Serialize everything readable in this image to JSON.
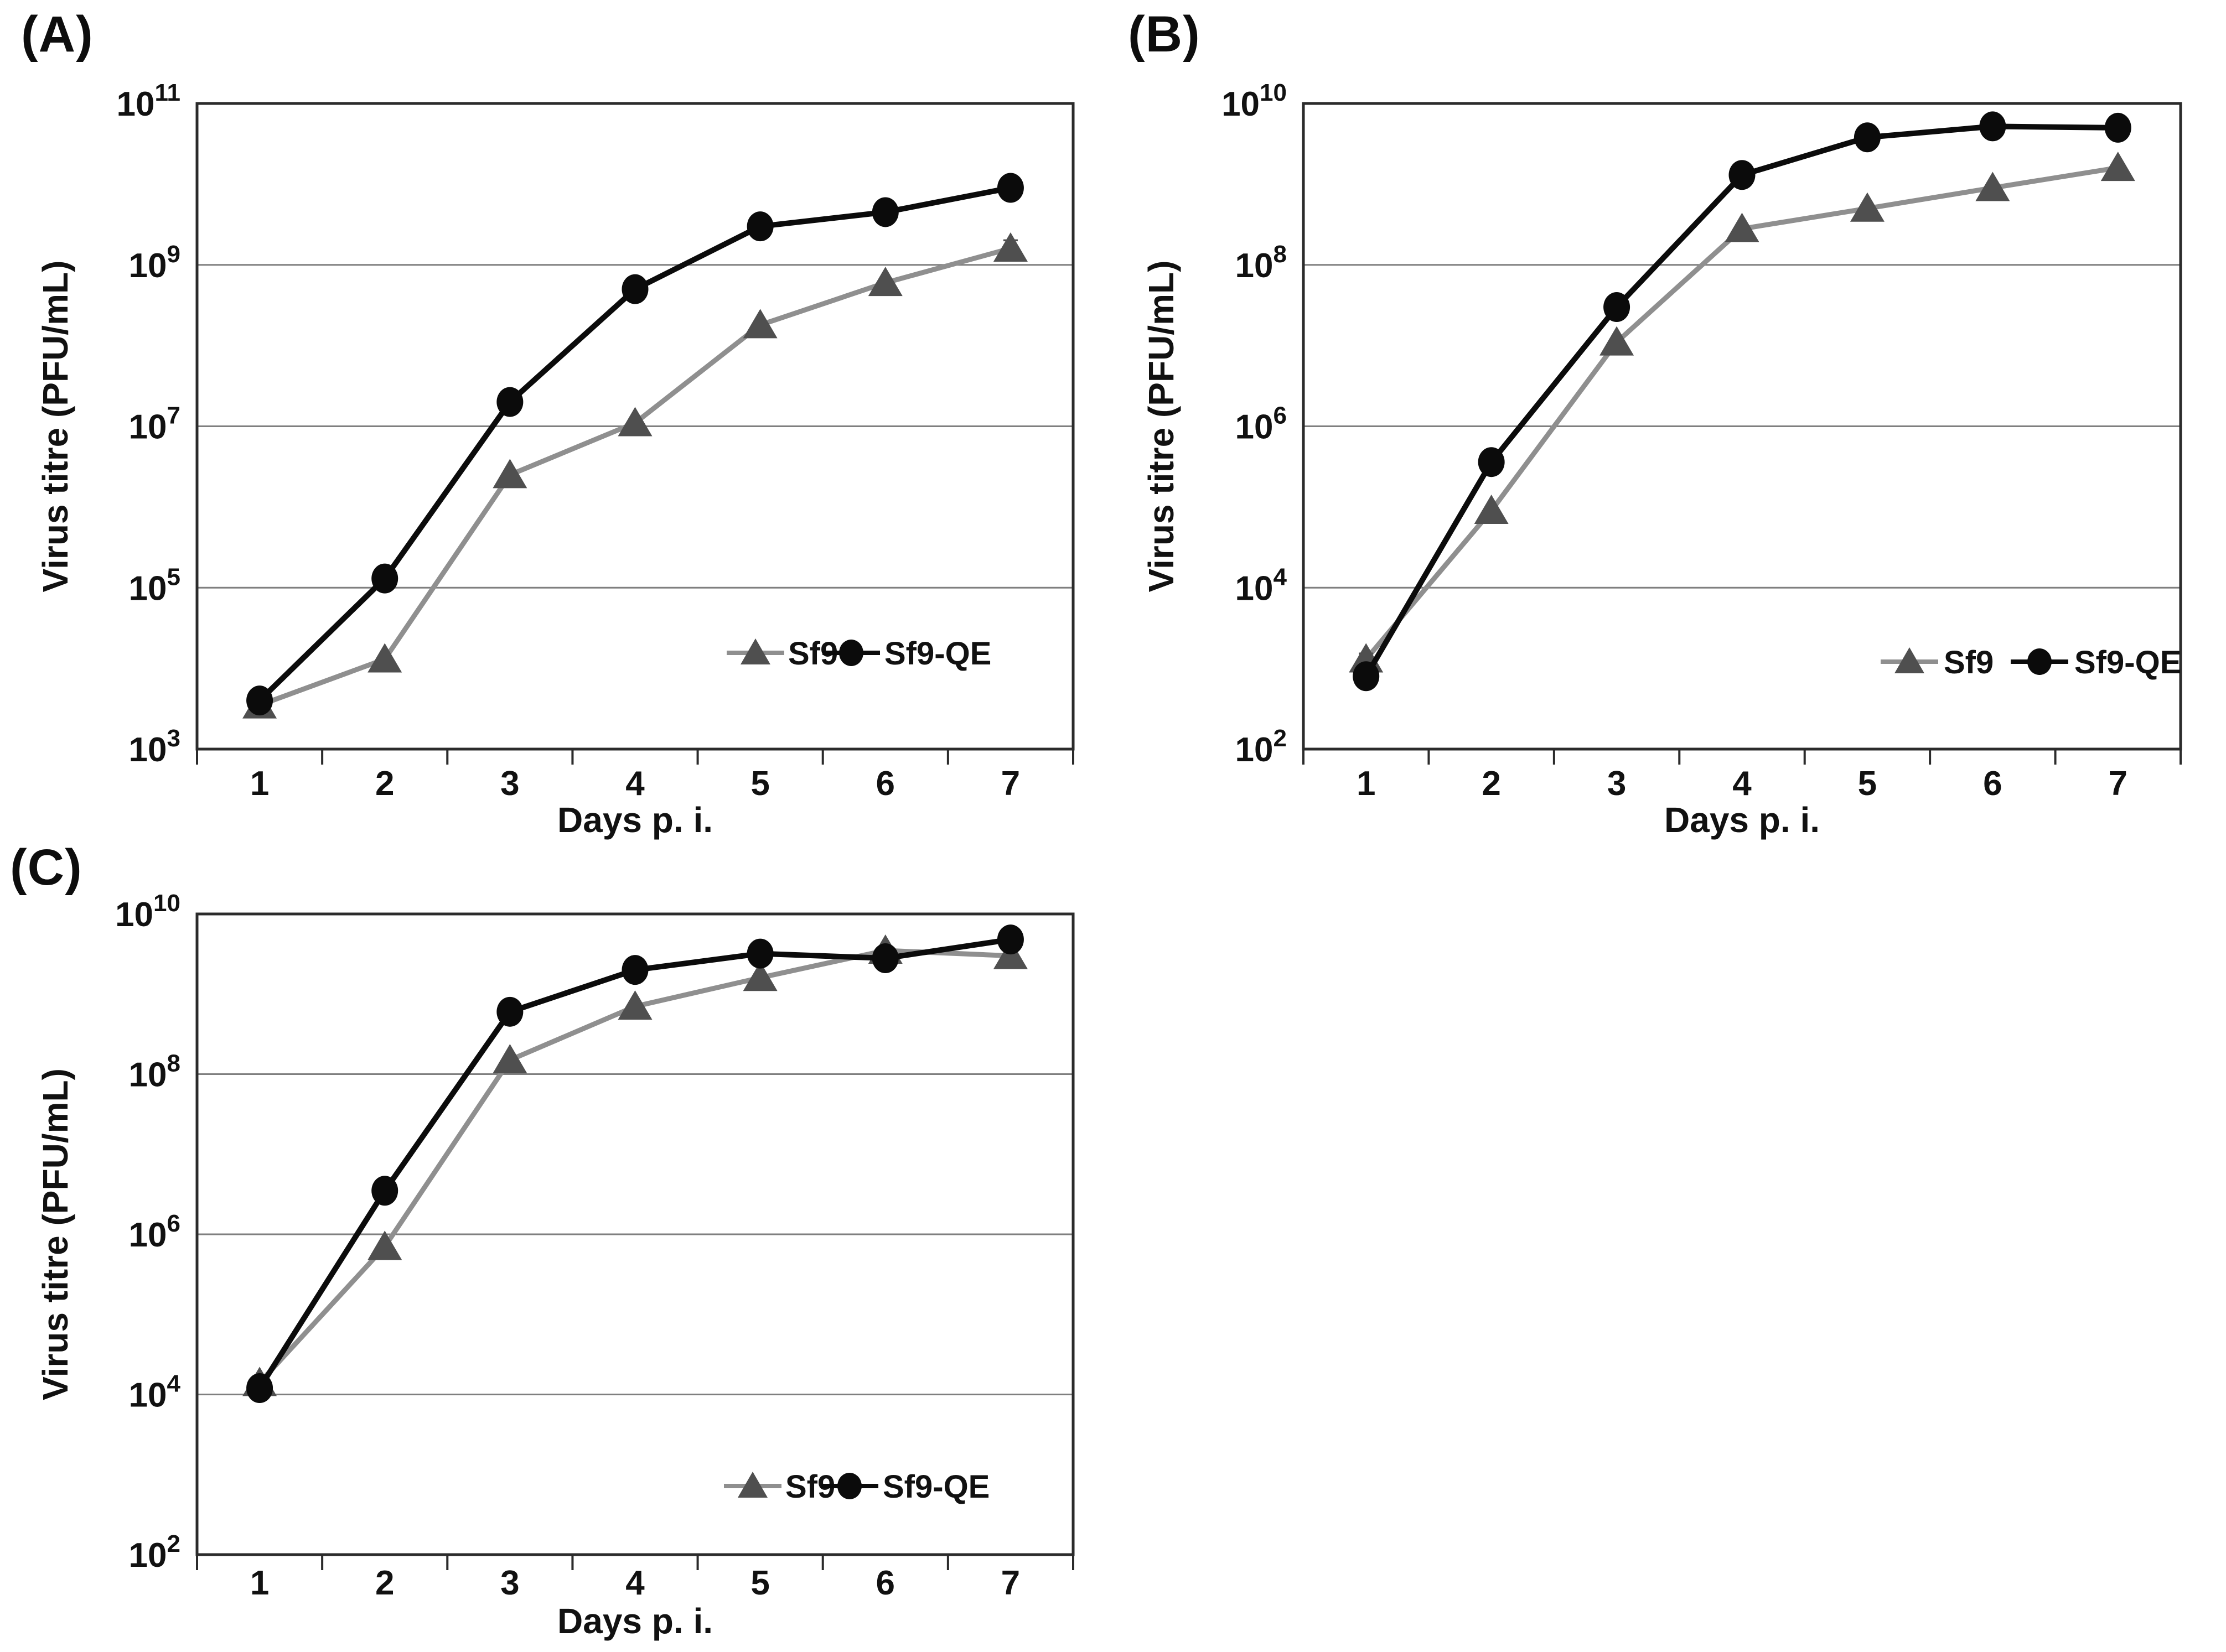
{
  "figure_background": "#ffffff",
  "text_color": "#111111",
  "frame_color": "#2b2b2b",
  "gridline_color": "#7f7f7f",
  "chart_data": [
    {
      "type": "line",
      "panel_id": "a",
      "panel_label": "(A)",
      "xlabel": "Days p. i.",
      "ylabel": "Virus titre (PFU/mL)",
      "x": [
        1,
        2,
        3,
        4,
        5,
        6,
        7
      ],
      "x_tick_labels": [
        "1",
        "2",
        "3",
        "4",
        "5",
        "6",
        "7"
      ],
      "y_scale": "log10",
      "ylim_exponents": [
        3,
        11
      ],
      "ytick_exponents": [
        3,
        5,
        7,
        9,
        11
      ],
      "ytick_labels": [
        "10^3",
        "10^5",
        "10^7",
        "10^9",
        "10^11"
      ],
      "grid": true,
      "legend_position": "inside-bottom-right",
      "series": [
        {
          "name": "Sf9",
          "marker": "triangle",
          "line_color": "#8f8f8f",
          "marker_color": "#4f4f4f",
          "values": [
            3500.0,
            13000.0,
            2500000.0,
            11000000.0,
            180000000.0,
            600000000.0,
            1600000000.0
          ],
          "err_decades": [
            0.06,
            0,
            0,
            0,
            0,
            0,
            0.1
          ]
        },
        {
          "name": "Sf9-QE",
          "marker": "circle",
          "line_color": "#0b0b0b",
          "marker_color": "#0b0b0b",
          "values": [
            4000.0,
            130000.0,
            20000000.0,
            500000000.0,
            3000000000.0,
            4500000000.0,
            9000000000.0
          ],
          "err_decades": [
            0,
            0,
            0.1,
            0.08,
            0.05,
            0,
            0.04
          ]
        }
      ]
    },
    {
      "type": "line",
      "panel_id": "b",
      "panel_label": "(B)",
      "xlabel": "Days p. i.",
      "ylabel": "Virus titre (PFU/mL)",
      "x": [
        1,
        2,
        3,
        4,
        5,
        6,
        7
      ],
      "x_tick_labels": [
        "1",
        "2",
        "3",
        "4",
        "5",
        "6",
        "7"
      ],
      "y_scale": "log10",
      "ylim_exponents": [
        2,
        10
      ],
      "ytick_exponents": [
        2,
        4,
        6,
        8,
        10
      ],
      "ytick_labels": [
        "10^2",
        "10^4",
        "10^6",
        "10^8",
        "10^10"
      ],
      "grid": true,
      "legend_position": "inside-bottom-right",
      "series": [
        {
          "name": "Sf9",
          "marker": "triangle",
          "line_color": "#8f8f8f",
          "marker_color": "#4f4f4f",
          "values": [
            1300.0,
            90000.0,
            11000000.0,
            280000000.0,
            500000000.0,
            900000000.0,
            1600000000.0
          ],
          "err_decades": [
            0.07,
            0,
            0,
            0,
            0,
            0,
            0
          ]
        },
        {
          "name": "Sf9-QE",
          "marker": "circle",
          "line_color": "#0b0b0b",
          "marker_color": "#0b0b0b",
          "values": [
            800.0,
            360000.0,
            30000000.0,
            1300000000.0,
            3800000000.0,
            5200000000.0,
            5000000000.0
          ],
          "err_decades": [
            0.05,
            0.12,
            0,
            0.05,
            0.05,
            0,
            0
          ]
        }
      ]
    },
    {
      "type": "line",
      "panel_id": "c",
      "panel_label": "(C)",
      "xlabel": "Days p. i.",
      "ylabel": "Virus titre (PFU/mL)",
      "x": [
        1,
        2,
        3,
        4,
        5,
        6,
        7
      ],
      "x_tick_labels": [
        "1",
        "2",
        "3",
        "4",
        "5",
        "6",
        "7"
      ],
      "y_scale": "log10",
      "ylim_exponents": [
        2,
        10
      ],
      "ytick_exponents": [
        2,
        4,
        6,
        8,
        10
      ],
      "ytick_labels": [
        "10^2",
        "10^4",
        "10^6",
        "10^8",
        "10^10"
      ],
      "grid": true,
      "legend_position": "inside-bottom-right",
      "series": [
        {
          "name": "Sf9",
          "marker": "triangle",
          "line_color": "#8f8f8f",
          "marker_color": "#4f4f4f",
          "values": [
            14000.0,
            700000.0,
            150000000.0,
            700000000.0,
            1600000000.0,
            3500000000.0,
            3000000000.0
          ],
          "err_decades": [
            0.05,
            0,
            0,
            0,
            0,
            0,
            0
          ]
        },
        {
          "name": "Sf9-QE",
          "marker": "circle",
          "line_color": "#0b0b0b",
          "marker_color": "#0b0b0b",
          "values": [
            12000.0,
            3500000.0,
            600000000.0,
            2000000000.0,
            3200000000.0,
            2800000000.0,
            4800000000.0
          ],
          "err_decades": [
            0.05,
            0,
            0.06,
            0,
            0,
            0,
            0
          ]
        }
      ]
    }
  ]
}
